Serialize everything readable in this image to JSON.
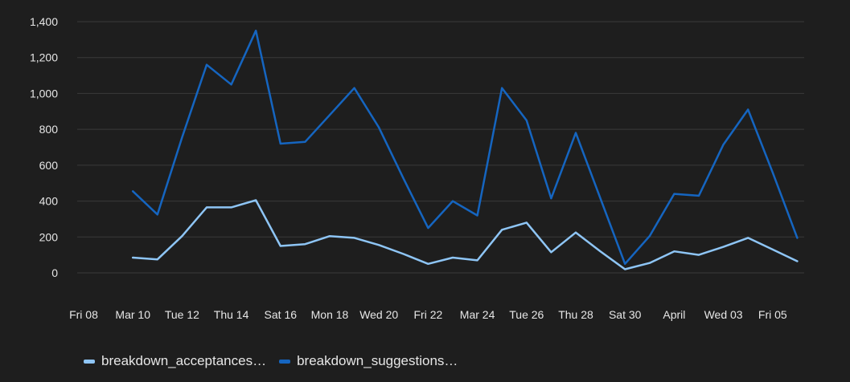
{
  "colors": {
    "background": "#1e1e1e",
    "grid": "#3a3a3a",
    "text": "#e6e6e6"
  },
  "chart_data": {
    "type": "line",
    "title": "",
    "xlabel": "",
    "ylabel": "",
    "x_tick_labels": [
      "Fri 08",
      "Mar 10",
      "Tue 12",
      "Thu 14",
      "Sat 16",
      "Mon 18",
      "Wed 20",
      "Fri 22",
      "Mar 24",
      "Tue 26",
      "Thu 28",
      "Sat 30",
      "April",
      "Wed 03",
      "Fri 05"
    ],
    "x": [
      "2024-03-08",
      "2024-03-09",
      "2024-03-10",
      "2024-03-11",
      "2024-03-12",
      "2024-03-13",
      "2024-03-14",
      "2024-03-15",
      "2024-03-16",
      "2024-03-17",
      "2024-03-18",
      "2024-03-19",
      "2024-03-20",
      "2024-03-21",
      "2024-03-22",
      "2024-03-23",
      "2024-03-24",
      "2024-03-25",
      "2024-03-26",
      "2024-03-27",
      "2024-03-28",
      "2024-03-29",
      "2024-03-30",
      "2024-03-31",
      "2024-04-01",
      "2024-04-02",
      "2024-04-03",
      "2024-04-04",
      "2024-04-05",
      "2024-04-06"
    ],
    "y_ticks": [
      "0",
      "200",
      "400",
      "600",
      "800",
      "1,000",
      "1,200",
      "1,400"
    ],
    "ylim": [
      0,
      1400
    ],
    "grid": true,
    "legend_position": "bottom-left",
    "series": [
      {
        "name": "breakdown_acceptances…",
        "color": "#8ec5f5",
        "values": [
          null,
          null,
          85,
          75,
          205,
          365,
          365,
          405,
          150,
          160,
          205,
          195,
          155,
          105,
          50,
          85,
          70,
          240,
          280,
          115,
          225,
          120,
          20,
          55,
          120,
          100,
          145,
          195,
          130,
          65
        ]
      },
      {
        "name": "breakdown_suggestions…",
        "color": "#1565c0",
        "values": [
          null,
          null,
          455,
          325,
          755,
          1160,
          1050,
          1350,
          720,
          730,
          880,
          1030,
          810,
          525,
          250,
          400,
          320,
          1030,
          850,
          415,
          780,
          415,
          50,
          205,
          440,
          430,
          715,
          910,
          560,
          195
        ]
      }
    ]
  }
}
